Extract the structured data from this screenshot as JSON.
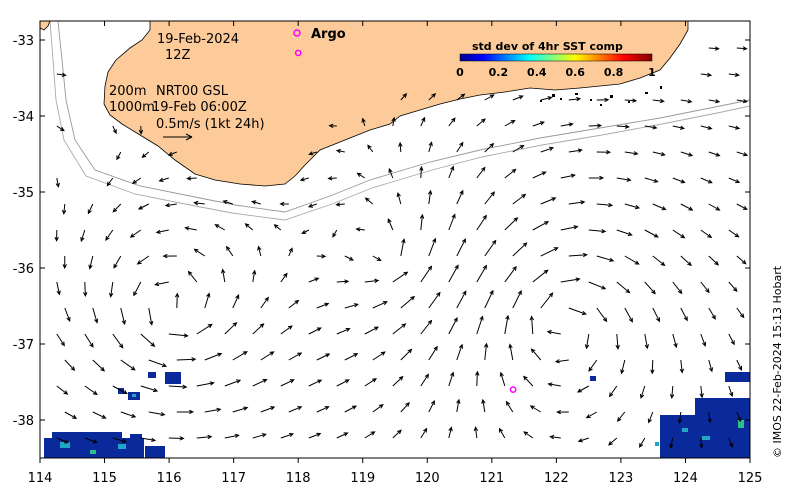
{
  "map": {
    "date_label": "19-Feb-2024",
    "time_label": "12Z",
    "depth_label_200": "200m",
    "depth_label_1000": "1000m",
    "product_label": "NRT00 GSL",
    "product_time": "19-Feb 06:00Z",
    "scale_arrow_label": "0.5m/s (1kt 24h)",
    "argo_label": "Argo",
    "colorbar_title": "std dev of 4hr SST comp",
    "colorbar_ticks": [
      "0",
      "0.2",
      "0.4",
      "0.6",
      "0.8",
      "1"
    ],
    "credit": "© IMOS 22-Feb-2024 15:13 Hobart",
    "x_ticks": [
      "114",
      "115",
      "116",
      "117",
      "118",
      "119",
      "120",
      "121",
      "122",
      "123",
      "124",
      "125"
    ],
    "y_ticks": [
      "-33",
      "-34",
      "-35",
      "-36",
      "-37",
      "-38"
    ],
    "colors": {
      "land": "#fccb99",
      "argo": "#ff00ff",
      "frame": "#000000",
      "isobath": "#999999",
      "sst_dense": "#0a2a9c"
    },
    "argo_floats": [
      {
        "lon": 118.0,
        "lat": -33.17
      },
      {
        "lon": 121.33,
        "lat": -37.6
      }
    ]
  }
}
